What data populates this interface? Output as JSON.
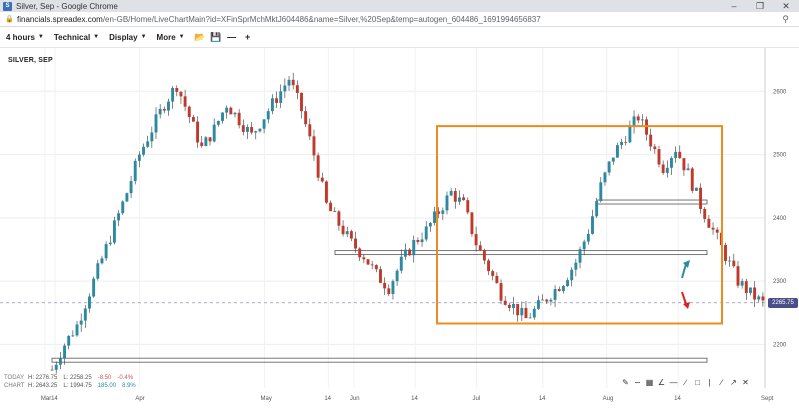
{
  "window": {
    "title": "Silver, Sep - Google Chrome",
    "app_icon_letter": "S"
  },
  "address": {
    "host": "financials.spreadex.com",
    "path": "/en-GB/Home/LiveChartMain?id=XFinSprMchMktJ604486&name=Silver,%20Sep&temp=autogen_604486_1691994656837"
  },
  "toolbar": {
    "timeframe_label": "4 hours",
    "technical_label": "Technical",
    "display_label": "Display",
    "more_label": "More"
  },
  "chart": {
    "instrument": "SILVER, SEP",
    "current_price_label": "2265.75",
    "colors": {
      "up": "#2b8aa0",
      "down": "#c0392b",
      "annotation_box": "#f08a1c",
      "price_tag": "#4a4f8a"
    }
  },
  "info": {
    "today_label": "TODAY",
    "chart_label": "CHART",
    "today": {
      "h": "H: 2276.75",
      "l": "L: 2258.25",
      "chg": "-8.50",
      "pct": "-0.4%"
    },
    "chart": {
      "h": "H: 2643.25",
      "l": "L: 1994.75",
      "chg": "185.00",
      "pct": "8.9%"
    }
  },
  "chart_data": {
    "type": "candlestick",
    "title": "SILVER, SEP",
    "x_ticks": [
      "Mar",
      "14",
      "Apr",
      "May",
      "14",
      "Jun",
      "14",
      "Jul",
      "14",
      "Aug",
      "14",
      "Sept"
    ],
    "y_ticks": [
      2200,
      2300,
      2400,
      2500,
      2600
    ],
    "ylim": [
      2150,
      2640
    ],
    "grid": true,
    "current_price": 2265.75,
    "anchor_path": [
      [
        0,
        2160
      ],
      [
        3,
        2200
      ],
      [
        6,
        2230
      ],
      [
        10,
        2300
      ],
      [
        14,
        2370
      ],
      [
        18,
        2440
      ],
      [
        21,
        2500
      ],
      [
        24,
        2540
      ],
      [
        27,
        2580
      ],
      [
        30,
        2610
      ],
      [
        33,
        2560
      ],
      [
        36,
        2510
      ],
      [
        39,
        2540
      ],
      [
        42,
        2580
      ],
      [
        45,
        2555
      ],
      [
        48,
        2530
      ],
      [
        51,
        2560
      ],
      [
        54,
        2590
      ],
      [
        57,
        2620
      ],
      [
        60,
        2570
      ],
      [
        63,
        2500
      ],
      [
        66,
        2420
      ],
      [
        69,
        2390
      ],
      [
        72,
        2360
      ],
      [
        75,
        2340
      ],
      [
        78,
        2310
      ],
      [
        81,
        2290
      ],
      [
        84,
        2330
      ],
      [
        87,
        2360
      ],
      [
        90,
        2380
      ],
      [
        93,
        2410
      ],
      [
        96,
        2440
      ],
      [
        99,
        2420
      ],
      [
        102,
        2360
      ],
      [
        105,
        2320
      ],
      [
        108,
        2280
      ],
      [
        111,
        2260
      ],
      [
        114,
        2240
      ],
      [
        117,
        2260
      ],
      [
        120,
        2280
      ],
      [
        123,
        2300
      ],
      [
        126,
        2330
      ],
      [
        129,
        2380
      ],
      [
        132,
        2450
      ],
      [
        135,
        2500
      ],
      [
        138,
        2530
      ],
      [
        141,
        2560
      ],
      [
        144,
        2520
      ],
      [
        147,
        2480
      ],
      [
        150,
        2510
      ],
      [
        153,
        2470
      ],
      [
        156,
        2420
      ],
      [
        159,
        2380
      ],
      [
        162,
        2340
      ],
      [
        165,
        2300
      ],
      [
        168,
        2280
      ],
      [
        171,
        2265
      ]
    ],
    "support_resistance_levels": [
      2175,
      2345,
      2425
    ],
    "annotation_box": {
      "from_bar": 114,
      "to_bar": 171,
      "low": 2233,
      "high": 2545
    }
  }
}
